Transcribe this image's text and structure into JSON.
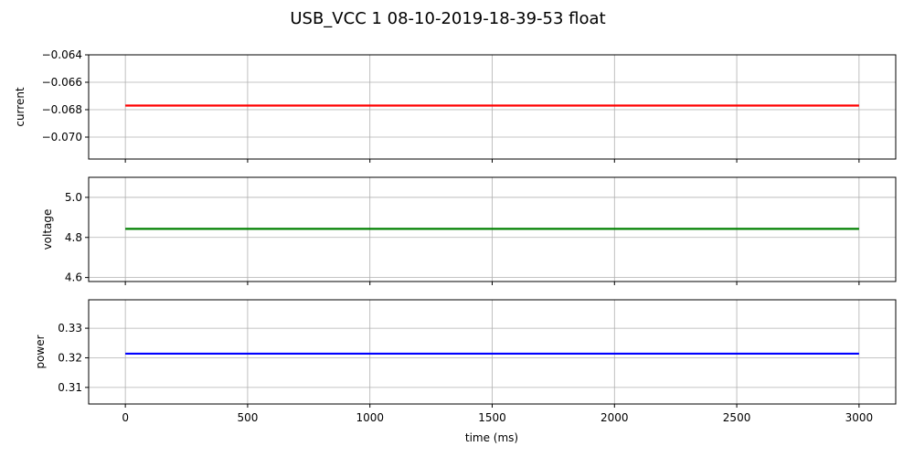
{
  "chart_data": {
    "type": "line",
    "title": "USB_VCC   1   08-10-2019-18-39-53   float",
    "xlabel": "time (ms)",
    "xlim": [
      -150,
      3150
    ],
    "xticks": [
      0,
      500,
      1000,
      1500,
      2000,
      2500,
      3000
    ],
    "xtick_labels": [
      "0",
      "500",
      "1000",
      "1500",
      "2000",
      "2500",
      "3000"
    ],
    "grid": true,
    "subplots": [
      {
        "ylabel": "current",
        "color": "#ff0000",
        "ylim": [
          -0.0716,
          -0.064
        ],
        "yticks": [
          -0.064,
          -0.066,
          -0.068,
          -0.07
        ],
        "ytick_labels": [
          "−0.064",
          "−0.066",
          "−0.068",
          "−0.070"
        ],
        "series": [
          {
            "x": [
              0,
              3000
            ],
            "values": [
              -0.0677,
              -0.0677
            ]
          }
        ]
      },
      {
        "ylabel": "voltage",
        "color": "#008000",
        "ylim": [
          4.58,
          5.1
        ],
        "yticks": [
          4.6,
          4.8,
          5.0
        ],
        "ytick_labels": [
          "4.6",
          "4.8",
          "5.0"
        ],
        "series": [
          {
            "x": [
              0,
              3000
            ],
            "values": [
              4.843,
              4.843
            ]
          }
        ]
      },
      {
        "ylabel": "power",
        "color": "#0000ff",
        "ylim": [
          0.3044,
          0.3396
        ],
        "yticks": [
          0.31,
          0.32,
          0.33
        ],
        "ytick_labels": [
          "0.31",
          "0.32",
          "0.33"
        ],
        "series": [
          {
            "x": [
              0,
              3000
            ],
            "values": [
              0.3214,
              0.3214
            ]
          }
        ]
      }
    ]
  }
}
